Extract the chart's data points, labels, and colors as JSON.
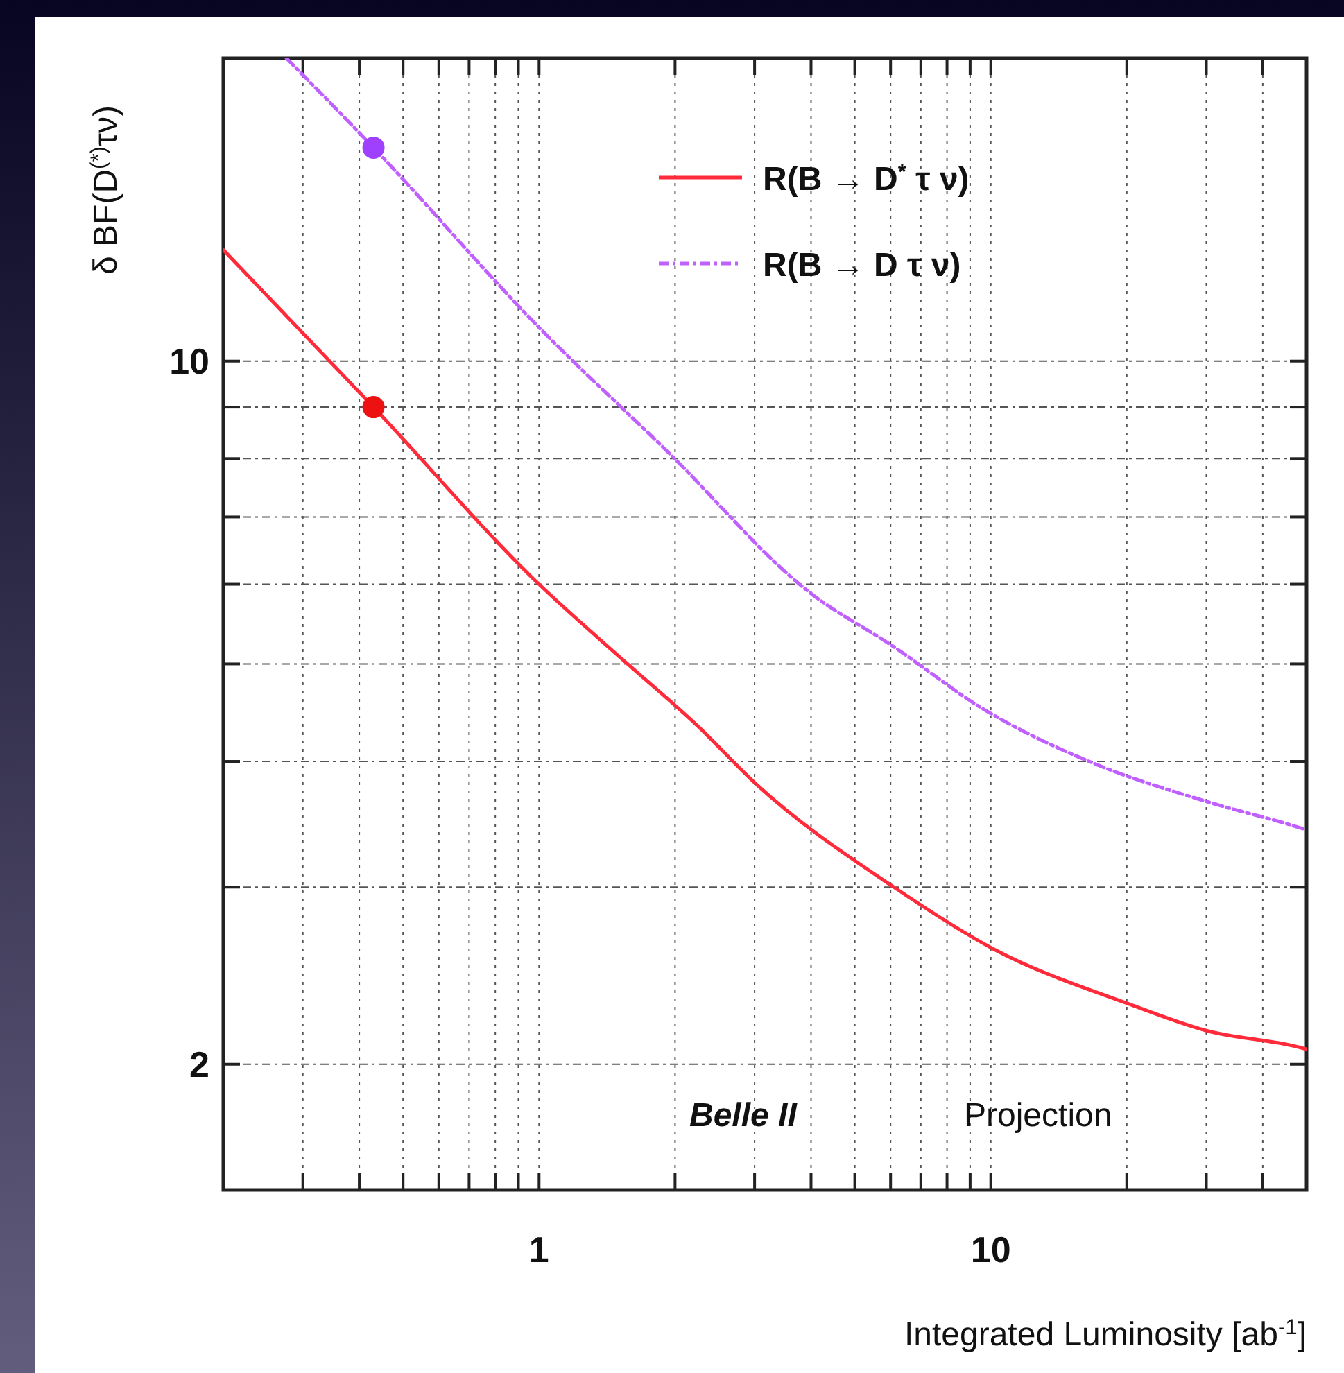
{
  "chart_data": {
    "type": "line",
    "xlabel": "Integrated Luminosity [ab$^{-1}$]",
    "ylabel": "δ BF(D$^{(*)}$τν)",
    "log": "xy",
    "xlim": [
      0.2,
      50
    ],
    "ylim": [
      1.5,
      20
    ],
    "xticks": [
      {
        "value": 0.3,
        "label": null
      },
      {
        "value": 0.4,
        "label": null
      },
      {
        "value": 0.5,
        "label": null
      },
      {
        "value": 0.6,
        "label": null
      },
      {
        "value": 0.7,
        "label": null
      },
      {
        "value": 0.8,
        "label": null
      },
      {
        "value": 0.9,
        "label": null
      },
      1,
      {
        "value": 2,
        "label": null
      },
      {
        "value": 3,
        "label": null
      },
      {
        "value": 4,
        "label": null
      },
      {
        "value": 5,
        "label": null
      },
      {
        "value": 6,
        "label": null
      },
      {
        "value": 7,
        "label": null
      },
      {
        "value": 8,
        "label": null
      },
      {
        "value": 9,
        "label": null
      },
      10,
      {
        "value": 20,
        "label": null
      },
      {
        "value": 30,
        "label": null
      },
      {
        "value": 40,
        "label": null
      }
    ],
    "yticks": [
      2,
      {
        "value": 3,
        "label": null
      },
      {
        "value": 4,
        "label": null
      },
      {
        "value": 5,
        "label": null
      },
      {
        "value": 6,
        "label": null
      },
      {
        "value": 7,
        "label": null
      },
      {
        "value": 8,
        "label": null
      },
      {
        "value": 9,
        "label": null
      },
      10
    ],
    "grid": true,
    "legend": "top right",
    "series": [
      {
        "name": "R(B → D$^{*}$ τ ν)",
        "color": "#ff2a3a",
        "line_style": "solid",
        "marker": "none",
        "x": [
          0.2,
          0.43,
          1,
          1.57,
          2.23,
          3.02,
          6.1,
          10.2,
          20,
          30,
          48,
          50
        ],
        "values": [
          12.9,
          9.0,
          6.0,
          5.0,
          4.35,
          3.8,
          3.0,
          2.6,
          2.3,
          2.16,
          2.08,
          2.07
        ]
      },
      {
        "name": "R(B → D τ ν)",
        "color": "#c060ff",
        "line_style": "dashed",
        "marker": "none",
        "x": [
          0.276,
          0.43,
          1,
          1.94,
          3.95,
          6.1,
          9.7,
          16.5,
          30,
          48,
          50
        ],
        "values": [
          20,
          16.3,
          10.8,
          8.1,
          5.9,
          5.2,
          4.5,
          4.0,
          3.65,
          3.44,
          3.42
        ]
      },
      {
        "color": "#ee1111",
        "type": "scatter",
        "marker": "circle",
        "x": [
          0.43
        ],
        "values": [
          9.0
        ]
      },
      {
        "color": "#a040ff",
        "type": "scatter",
        "marker": "circle",
        "x": [
          0.43
        ],
        "values": [
          16.3
        ]
      }
    ],
    "annotations": [
      "Belle II",
      "Projection"
    ]
  }
}
